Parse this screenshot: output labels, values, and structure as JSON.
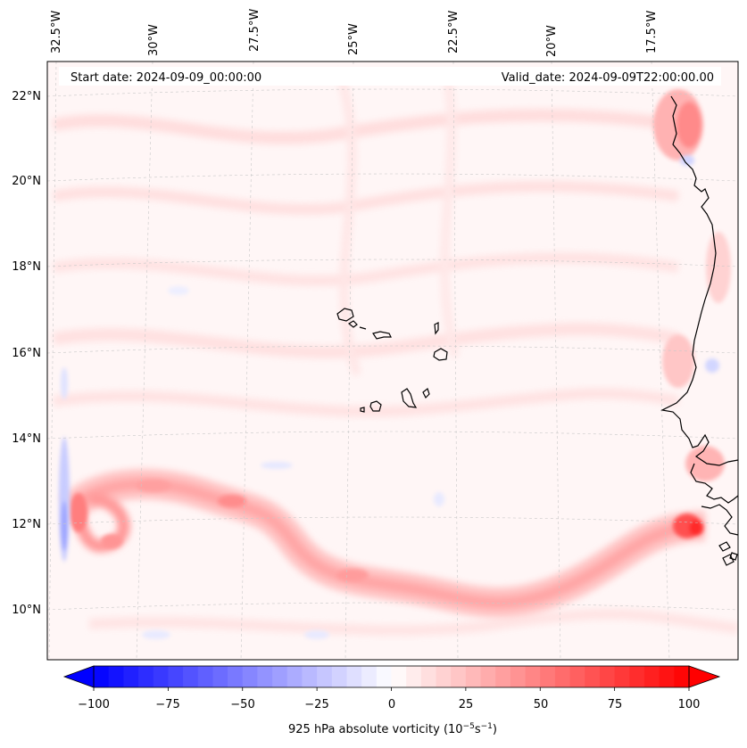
{
  "map": {
    "top_lon_labels": [
      "32.5°W",
      "30°W",
      "27.5°W",
      "25°W",
      "22.5°W",
      "20°W",
      "17.5°W"
    ],
    "lat_labels": [
      "22°N",
      "20°N",
      "18°N",
      "16°N",
      "14°N",
      "12°N",
      "10°N"
    ],
    "start_date": "Start date: 2024-09-09_00:00:00",
    "valid_date": "Valid_date: 2024-09-09T22:00:00.00"
  },
  "colorbar": {
    "ticks": [
      "−100",
      "−75",
      "−50",
      "−25",
      "0",
      "25",
      "50",
      "75",
      "100"
    ],
    "title_prefix": "925 hPa absolute vorticity (10",
    "title_exp1": "−5",
    "title_mid": "s",
    "title_exp2": "−1",
    "title_suffix": ")",
    "min": -100,
    "max": 100,
    "step": 5
  },
  "colors": {
    "negative": "#0000ff",
    "positive": "#ff0000",
    "coast": "#000000",
    "grid": "#b0b0b0"
  }
}
